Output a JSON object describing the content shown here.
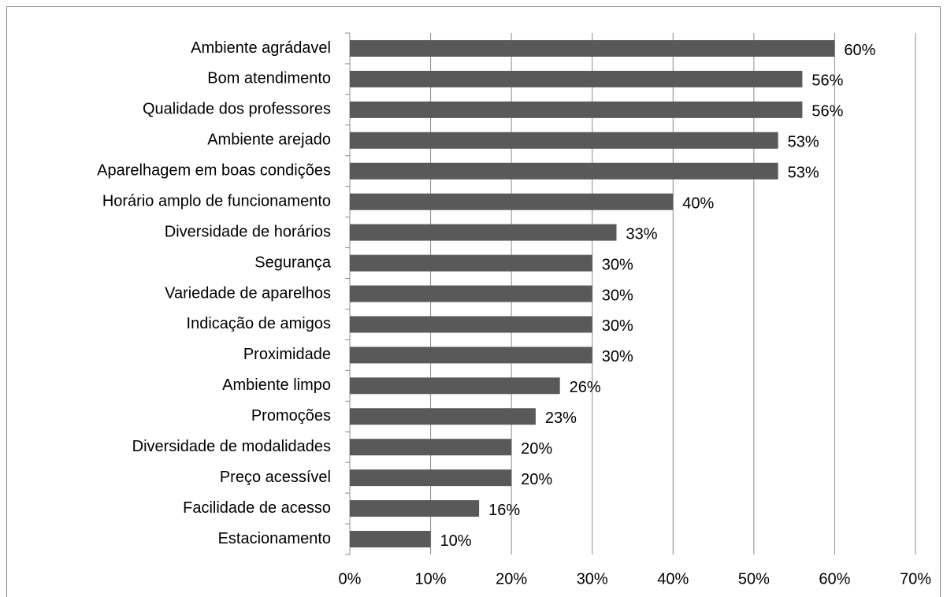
{
  "chart_data": {
    "type": "bar",
    "orientation": "horizontal",
    "categories": [
      "Ambiente agrádavel",
      "Bom atendimento",
      "Qualidade dos professores",
      "Ambiente arejado",
      "Aparelhagem em boas condições",
      "Horário amplo de funcionamento",
      "Diversidade de horários",
      "Segurança",
      "Variedade de aparelhos",
      "Indicação de amigos",
      "Proximidade",
      "Ambiente limpo",
      "Promoções",
      "Diversidade de modalidades",
      "Preço acessível",
      "Facilidade de acesso",
      "Estacionamento"
    ],
    "values": [
      60,
      56,
      56,
      53,
      53,
      40,
      33,
      30,
      30,
      30,
      30,
      26,
      23,
      20,
      20,
      16,
      10
    ],
    "value_labels": [
      "60%",
      "56%",
      "56%",
      "53%",
      "53%",
      "40%",
      "33%",
      "30%",
      "30%",
      "30%",
      "30%",
      "26%",
      "23%",
      "20%",
      "20%",
      "16%",
      "10%"
    ],
    "color": "#595959",
    "xlim": [
      0,
      70
    ],
    "xticks": [
      {
        "value": 0,
        "label": "0%"
      },
      {
        "value": 10,
        "label": "10%"
      },
      {
        "value": 20,
        "label": "20%"
      },
      {
        "value": 30,
        "label": "30%"
      },
      {
        "value": 40,
        "label": "40%"
      },
      {
        "value": 50,
        "label": "50%"
      },
      {
        "value": 60,
        "label": "60%"
      },
      {
        "value": 70,
        "label": "70%"
      }
    ],
    "grid": true
  }
}
